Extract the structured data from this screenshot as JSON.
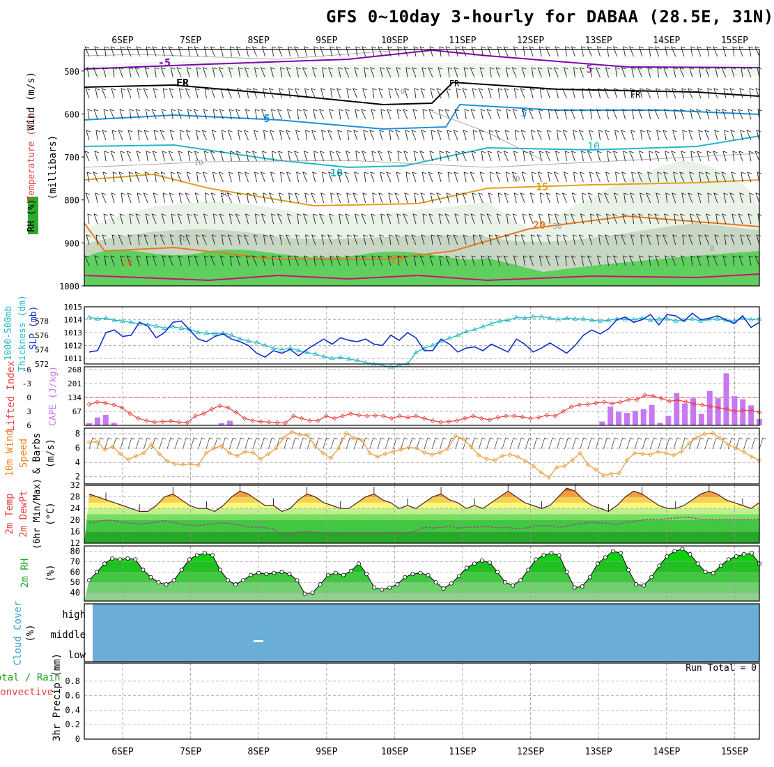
{
  "title": "GFS 0~10day 3-hourly for DABAA (28.5E, 31N)",
  "run_total": "Run Total = 0",
  "date_labels": [
    "6SEP",
    "7SEP",
    "8SEP",
    "9SEP",
    "10SEP",
    "11SEP",
    "12SEP",
    "13SEP",
    "14SEP",
    "15SEP"
  ],
  "panel_labels": {
    "upper_air": [
      "RH (%)",
      "Temperature (°C)",
      "Wind (m/s)",
      "(millibars)"
    ],
    "thickness": [
      "1000-500mb",
      "Thickness (dm)",
      "SLP (mb)"
    ],
    "stability": [
      "Lifted Index",
      "CAPE (J/kg)"
    ],
    "wind10m": [
      "10m Wind",
      "Speed",
      "& Barbs",
      "(m/s)"
    ],
    "temp2m": [
      "2m Temp",
      "2m DewPt",
      "(6hr Min/Max)",
      "(°C)"
    ],
    "rh2m": [
      "2m RH",
      "(%)"
    ],
    "cloud": [
      "Cloud Cover",
      "(%)"
    ],
    "precip": [
      "Total / Rain",
      "Convective",
      "3hr Precip (mm)"
    ]
  },
  "chart_data": [
    {
      "type": "area",
      "name": "upper_air_cross_section",
      "ylabel": "millibars",
      "yticks": [
        500,
        600,
        700,
        800,
        900,
        1000
      ],
      "isotherm_labels": [
        {
          "label": "-5",
          "pressure": 490,
          "color": "#8000b0"
        },
        {
          "label": "FR",
          "pressure": 545,
          "color": "#000000"
        },
        {
          "label": "5",
          "pressure": 605,
          "color": "#1e90d8"
        },
        {
          "label": "10",
          "pressure": 690,
          "color": "#20b8c8"
        },
        {
          "label": "15",
          "pressure": 780,
          "color": "#e0a020"
        },
        {
          "label": "20",
          "pressure": 880,
          "color": "#e87820"
        }
      ],
      "rh_contour_labels": [
        "0",
        "10",
        "10",
        "30",
        "50",
        "0",
        "30"
      ]
    },
    {
      "type": "line",
      "name": "thickness_slp",
      "thickness_ticks": [
        572,
        574,
        576,
        578
      ],
      "slp_ticks": [
        1011,
        1012,
        1013,
        1014,
        1015
      ],
      "slp": [
        1011.5,
        1011.6,
        1013.0,
        1013.2,
        1012.7,
        1012.8,
        1013.8,
        1013.5,
        1012.6,
        1013.0,
        1013.8,
        1013.9,
        1013.2,
        1012.5,
        1012.3,
        1012.7,
        1012.9,
        1012.5,
        1012.3,
        1012.0,
        1011.4,
        1011.1,
        1011.6,
        1011.4,
        1011.7,
        1011.2,
        1011.7,
        1012.1,
        1012.5,
        1012.1,
        1012.6,
        1012.4,
        1012.3,
        1012.5,
        1012.1,
        1012.0,
        1012.8,
        1012.4,
        1013.0,
        1012.6,
        1011.6,
        1011.6,
        1012.5,
        1012.1,
        1011.5,
        1011.8,
        1011.9,
        1011.6,
        1012.1,
        1011.8,
        1011.5,
        1012.5,
        1012.1,
        1011.5,
        1011.8,
        1012.2,
        1011.8,
        1011.4,
        1012.0,
        1012.8,
        1013.2,
        1012.9,
        1013.3,
        1014.0,
        1014.2,
        1013.8,
        1014.0,
        1014.4,
        1013.6,
        1014.4,
        1014.3,
        1013.9,
        1014.5,
        1014.0,
        1014.1,
        1014.3,
        1014.0,
        1013.7,
        1014.3,
        1013.4,
        1013.8
      ],
      "thickness": [
        578.5,
        578.3,
        578.4,
        578.1,
        578.0,
        577.8,
        577.6,
        577.5,
        577.3,
        577.0,
        577.2,
        577.0,
        576.8,
        576.4,
        576.3,
        576.2,
        576.3,
        576.0,
        575.5,
        575.2,
        575.0,
        574.6,
        574.2,
        574.0,
        574.2,
        573.9,
        573.6,
        573.4,
        573.0,
        572.8,
        572.9,
        572.7,
        572.5,
        572.2,
        572.0,
        571.8,
        571.6,
        571.8,
        572.0,
        573.6,
        574.2,
        574.6,
        575.2,
        575.6,
        576.0,
        576.5,
        576.8,
        577.2,
        577.6,
        578.0,
        578.1,
        578.5,
        578.4,
        578.6,
        578.6,
        578.4,
        578.2,
        578.4,
        578.3,
        578.3,
        578.1,
        578.0,
        578.1,
        578.3,
        578.2,
        578.2,
        578.4,
        578.1,
        578.3,
        578.3,
        578.0,
        578.1,
        578.3,
        578.0,
        578.2,
        578.3,
        578.1,
        578.0,
        578.4,
        578.2,
        578.3
      ]
    },
    {
      "type": "bar",
      "name": "lifted_index_cape",
      "li_ticks": [
        -6,
        -3,
        0,
        3,
        6
      ],
      "cape_ticks": [
        67,
        134,
        201,
        268
      ],
      "lifted_index": [
        1.5,
        1.0,
        1.2,
        1.6,
        2.2,
        3.5,
        4.5,
        5.0,
        5.3,
        5.2,
        5.1,
        5.3,
        5.4,
        4.0,
        3.5,
        2.5,
        1.8,
        2.2,
        3.2,
        4.5,
        5.0,
        5.2,
        5.3,
        5.4,
        5.5,
        4.0,
        4.5,
        5.0,
        5.0,
        4.0,
        4.5,
        4.0,
        3.5,
        3.8,
        4.0,
        3.9,
        4.0,
        4.5,
        4.0,
        4.3,
        4.0,
        4.5,
        5.0,
        5.3,
        5.2,
        5.0,
        4.5,
        4.0,
        4.5,
        4.8,
        4.3,
        4.0,
        4.0,
        4.2,
        4.5,
        4.3,
        3.8,
        4.0,
        3.0,
        2.0,
        1.6,
        1.5,
        1.2,
        1.0,
        1.3,
        1.0,
        0.5,
        0.5,
        -0.5,
        -0.3,
        0.2,
        0.8,
        0.6,
        0.9,
        1.4,
        1.6,
        1.9,
        2.2,
        2.5,
        3.0,
        2.8,
        2.8,
        3.2
      ],
      "cape": [
        10,
        38,
        50,
        12,
        0,
        0,
        0,
        0,
        0,
        0,
        0,
        0,
        0,
        0,
        0,
        0,
        10,
        22,
        0,
        0,
        0,
        0,
        0,
        0,
        0,
        0,
        0,
        0,
        0,
        0,
        0,
        0,
        0,
        0,
        0,
        0,
        0,
        0,
        0,
        0,
        0,
        0,
        0,
        0,
        0,
        0,
        0,
        0,
        0,
        0,
        0,
        0,
        0,
        0,
        0,
        0,
        0,
        0,
        0,
        0,
        0,
        0,
        18,
        90,
        65,
        60,
        70,
        78,
        98,
        12,
        45,
        155,
        105,
        130,
        55,
        165,
        130,
        250,
        140,
        125,
        96,
        30
      ]
    },
    {
      "type": "line",
      "name": "wind10m",
      "yticks": [
        2,
        4,
        6,
        8
      ],
      "speed": [
        6.8,
        6.9,
        5.8,
        6.2,
        5.2,
        4.4,
        4.9,
        5.3,
        6.5,
        5.2,
        4.2,
        3.8,
        3.7,
        3.8,
        3.6,
        5.3,
        6.0,
        6.3,
        5.3,
        4.9,
        5.5,
        5.4,
        4.5,
        5.2,
        6.0,
        7.5,
        8.3,
        7.9,
        7.8,
        6.3,
        5.3,
        4.6,
        6.0,
        8.1,
        7.4,
        7.1,
        5.3,
        4.8,
        5.2,
        5.5,
        5.8,
        6.1,
        6.0,
        5.4,
        5.1,
        5.4,
        5.9,
        7.7,
        7.3,
        6.2,
        5.0,
        4.5,
        4.3,
        4.9,
        5.1,
        4.8,
        4.2,
        3.5,
        2.6,
        1.9,
        3.3,
        3.5,
        4.3,
        5.3,
        3.7,
        3.0,
        2.2,
        2.4,
        2.5,
        4.3,
        5.3,
        5.2,
        5.1,
        5.5,
        5.3,
        5.0,
        5.5,
        6.7,
        7.5,
        8.0,
        8.1,
        7.4,
        6.5,
        6.0,
        5.5,
        4.8,
        4.3
      ]
    },
    {
      "type": "area",
      "name": "temp2m_dewpt",
      "yticks": [
        12,
        16,
        20,
        24,
        28,
        32
      ],
      "temperature": [
        29,
        28,
        27,
        26,
        25,
        24,
        23,
        23,
        25,
        28,
        29,
        27,
        25,
        24,
        24,
        23,
        25,
        28,
        30,
        29,
        27,
        25,
        25,
        23,
        24,
        27,
        29,
        28,
        26,
        25,
        24,
        24,
        26,
        28,
        29,
        27,
        26,
        24,
        25,
        24,
        26,
        28,
        29,
        27,
        26,
        24,
        25,
        24,
        26,
        28,
        30,
        28,
        26,
        25,
        24,
        25,
        28,
        31,
        30,
        27,
        25,
        24,
        23,
        25,
        28,
        30,
        29,
        27,
        25,
        24,
        24,
        25,
        27,
        29,
        30,
        29,
        27,
        26,
        25,
        24,
        26
      ],
      "dewpoint": [
        19,
        19.5,
        20,
        19.8,
        19.2,
        18.9,
        18.6,
        18.9,
        19.2,
        19.8,
        19.2,
        18.6,
        18.3,
        18.0,
        18.5,
        18.8,
        19.0,
        18.7,
        18.2,
        17.6,
        17.6,
        17.4,
        16.8,
        15.2,
        14.8,
        15.8,
        16.0,
        15.8,
        15.2,
        14.6,
        15.0,
        15.5,
        15.5,
        15.2,
        15.5,
        15.4,
        15.8,
        15.5,
        15.5,
        16.3,
        17.5,
        17.2,
        17.5,
        17.8,
        17.2,
        17.5,
        17.5,
        17.8,
        17.6,
        17.3,
        17.5,
        17.0,
        17.2,
        17.8,
        18.1,
        18.0,
        17.5,
        17.8,
        18.5,
        19.0,
        19.2,
        19.0,
        18.8,
        18.5,
        19.2,
        19.5,
        20.0,
        20.3,
        20.0,
        20.5,
        20.7,
        21.0,
        20.8,
        20.2,
        20.1,
        20.1,
        20.2,
        20.1,
        20.1,
        20.2,
        20.2
      ]
    },
    {
      "type": "area",
      "name": "rh2m",
      "yticks": [
        40,
        50,
        60,
        70,
        80
      ],
      "rh": [
        52,
        60,
        68,
        73,
        72,
        73,
        72,
        62,
        55,
        50,
        48,
        52,
        62,
        72,
        76,
        78,
        76,
        62,
        52,
        48,
        52,
        57,
        59,
        58,
        59,
        60,
        58,
        52,
        39,
        40,
        48,
        57,
        59,
        57,
        61,
        68,
        58,
        45,
        43,
        45,
        48,
        55,
        58,
        59,
        57,
        50,
        44,
        49,
        56,
        64,
        68,
        71,
        69,
        60,
        50,
        47,
        52,
        62,
        72,
        76,
        78,
        76,
        60,
        45,
        46,
        55,
        68,
        74,
        80,
        78,
        62,
        48,
        47,
        55,
        66,
        75,
        80,
        82,
        77,
        68,
        60,
        59,
        66,
        72,
        75,
        77,
        78,
        68
      ]
    },
    {
      "type": "area",
      "name": "cloud_cover",
      "levels": [
        "high",
        "middle",
        "low"
      ]
    },
    {
      "type": "bar",
      "name": "precip_3hr",
      "yticks": [
        0,
        0.2,
        0.4,
        0.6,
        0.8
      ],
      "values": []
    }
  ]
}
